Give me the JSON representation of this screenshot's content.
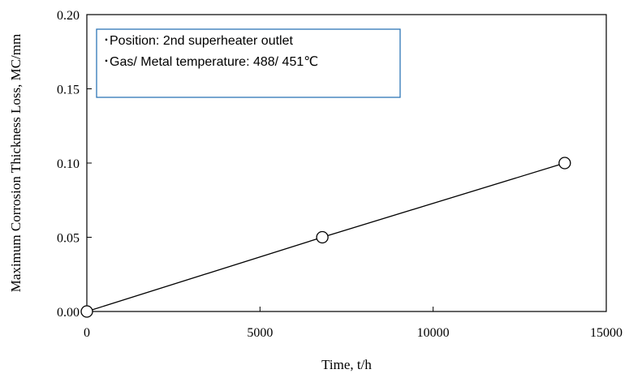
{
  "chart_data": {
    "type": "line",
    "title": "",
    "xlabel": "Time,  t/h",
    "ylabel": "Maximum Corrosion Thickness Loss, MC/mm",
    "xlim": [
      0,
      15000
    ],
    "ylim": [
      0,
      0.2
    ],
    "xticks": [
      "0",
      "5000",
      "10000",
      "15000"
    ],
    "yticks": [
      "0.00",
      "0.05",
      "0.10",
      "0.15",
      "0.20"
    ],
    "grid": false,
    "series": [
      {
        "x": [
          0,
          6800,
          13800
        ],
        "y": [
          0.0,
          0.05,
          0.1
        ],
        "marker": "open-circle",
        "color": "#000000"
      }
    ],
    "annotations": [
      "･Position: 2nd superheater outlet",
      "･Gas/ Metal temperature: 488/ 451℃"
    ],
    "annotation_box_color": "#2e75b6"
  }
}
